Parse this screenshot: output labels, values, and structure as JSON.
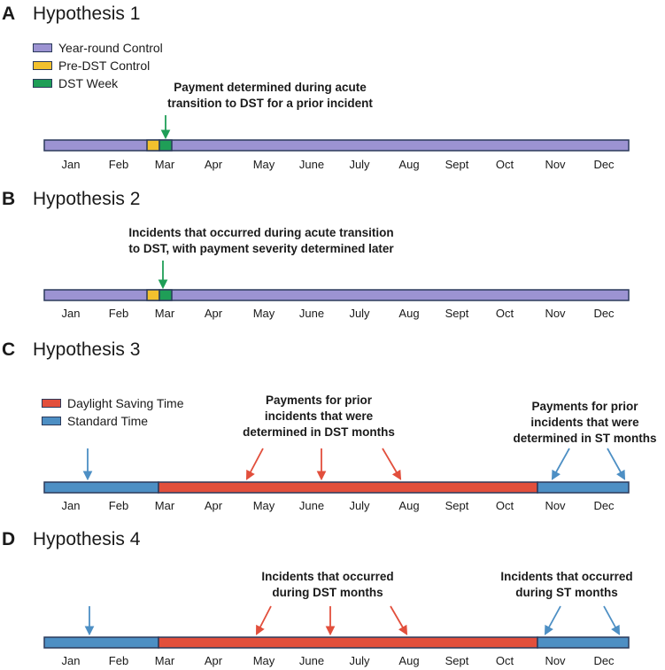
{
  "colors": {
    "year_round": "#9c93d2",
    "pre_dst": "#f2c12e",
    "dst_week": "#1f9e57",
    "dst": "#e24f3c",
    "st": "#4d8fc4",
    "outline": "#2b3a5b",
    "green_arrow": "#1f9e57",
    "blue_arrow": "#4d8fc4",
    "red_arrow": "#e24f3c"
  },
  "months": [
    "Jan",
    "Feb",
    "Mar",
    "Apr",
    "May",
    "June",
    "July",
    "Aug",
    "Sept",
    "Oct",
    "Nov",
    "Dec"
  ],
  "panels": [
    {
      "letter": "A",
      "title": "Hypothesis 1",
      "legend": [
        "Year-round Control",
        "Pre-DST Control",
        "DST Week"
      ],
      "annotation": "Payment determined during acute\ntransition to DST for a prior incident"
    },
    {
      "letter": "B",
      "title": "Hypothesis 2",
      "annotation": "Incidents that occurred during acute transition\nto DST, with payment severity determined later"
    },
    {
      "letter": "C",
      "title": "Hypothesis 3",
      "legend": [
        "Daylight Saving Time",
        "Standard Time"
      ],
      "annotation_dst": "Payments for prior\nincidents that were\ndetermined in DST months",
      "annotation_st": "Payments for prior\nincidents that were\ndetermined in ST months"
    },
    {
      "letter": "D",
      "title": "Hypothesis 4",
      "annotation_dst": "Incidents that occurred\nduring DST months",
      "annotation_st": "Incidents that occurred\nduring ST months"
    }
  ]
}
